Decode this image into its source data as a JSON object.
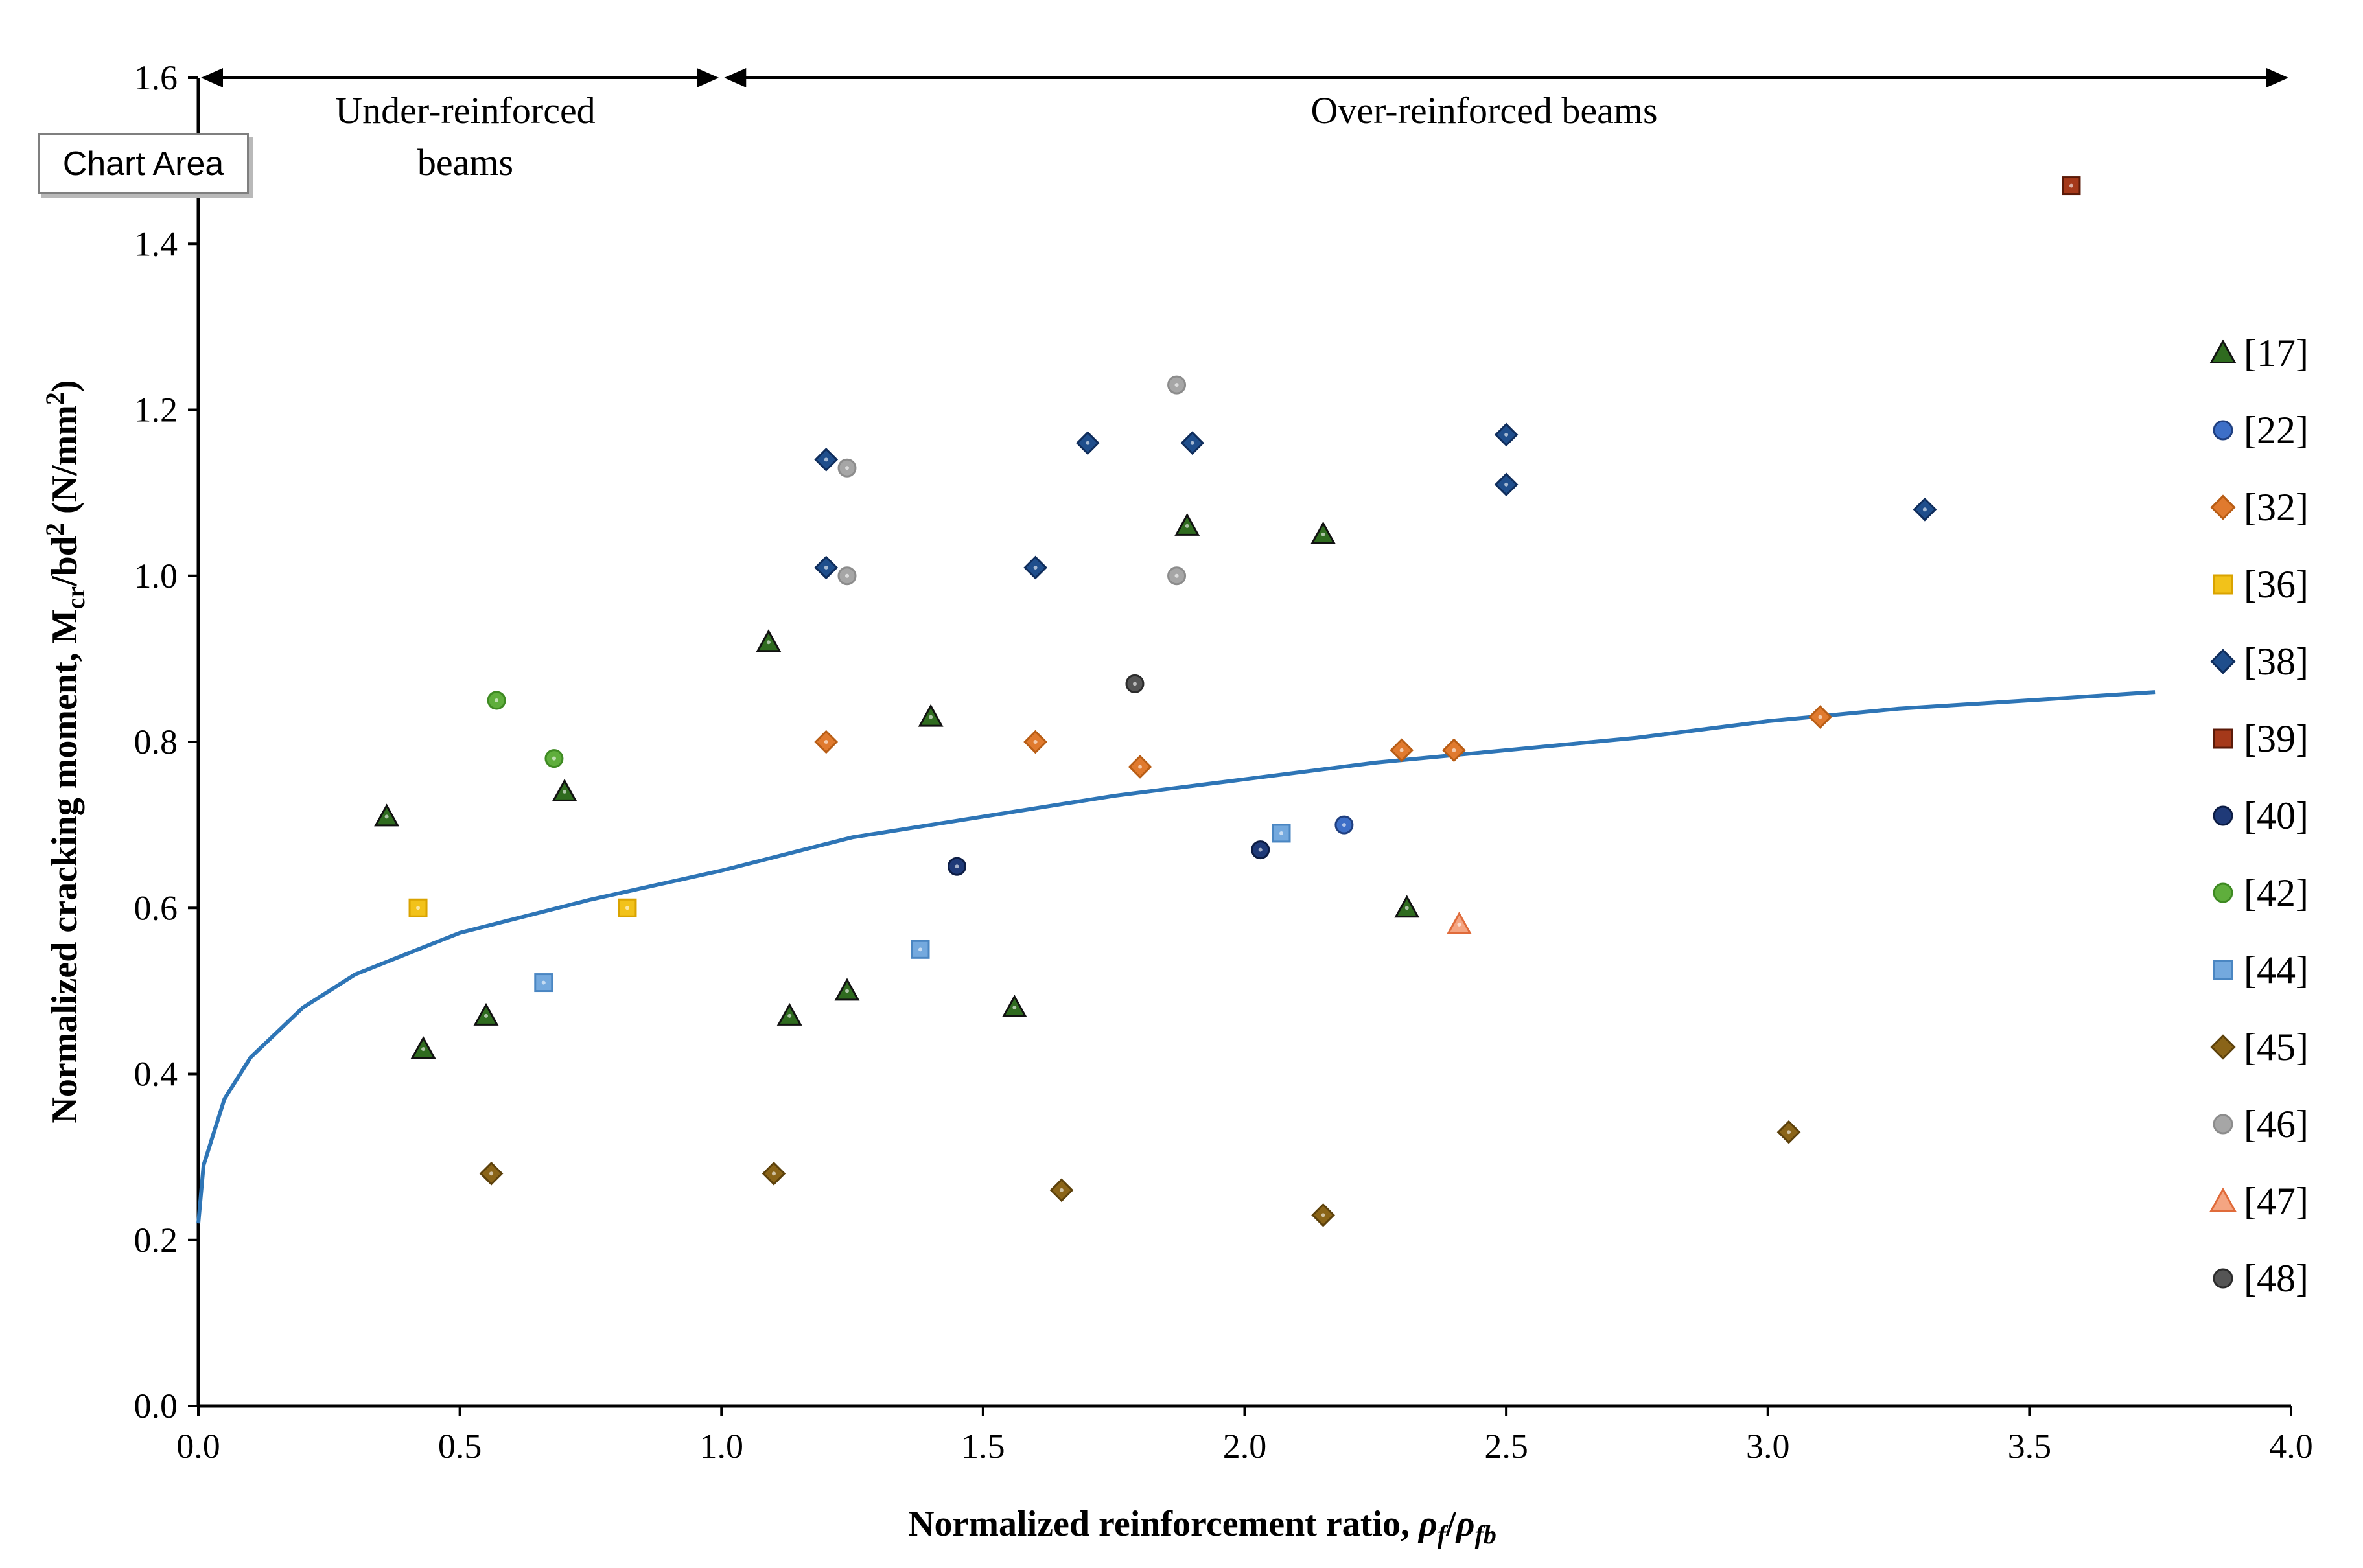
{
  "tag": {
    "label": "Chart Area"
  },
  "regions": {
    "under_line1": "Under-reinforced",
    "under_line2": "beams",
    "over": "Over-reinforced beams"
  },
  "chart_data": {
    "type": "scatter",
    "xlabel": "Normalized reinforcement ratio, ρf/ρfb",
    "ylabel": "Normalized cracking moment, Mcr/bd² (N/mm²)",
    "xlim": [
      0,
      4
    ],
    "ylim": [
      0,
      1.6
    ],
    "xticks": [
      "0.0",
      "0.5",
      "1.0",
      "1.5",
      "2.0",
      "2.5",
      "3.0",
      "3.5",
      "4.0"
    ],
    "yticks": [
      "0.0",
      "0.2",
      "0.4",
      "0.6",
      "0.8",
      "1.0",
      "1.2",
      "1.4",
      "1.6"
    ],
    "grid": false,
    "legend_position": "right",
    "series": [
      {
        "name": "[17]",
        "marker": "triangle",
        "color": "#2f6b1f",
        "edge": "#111111",
        "points": [
          [
            0.36,
            0.71
          ],
          [
            0.43,
            0.43
          ],
          [
            0.55,
            0.47
          ],
          [
            0.7,
            0.74
          ],
          [
            1.09,
            0.92
          ],
          [
            1.13,
            0.47
          ],
          [
            1.24,
            0.5
          ],
          [
            1.4,
            0.83
          ],
          [
            1.56,
            0.48
          ],
          [
            1.89,
            1.06
          ],
          [
            2.15,
            1.05
          ],
          [
            2.31,
            0.6
          ]
        ]
      },
      {
        "name": "[22]",
        "marker": "circle",
        "color": "#3d6fc7",
        "edge": "#1f3f80",
        "points": [
          [
            2.19,
            0.7
          ]
        ]
      },
      {
        "name": "[32]",
        "marker": "diamond",
        "color": "#e07a2e",
        "edge": "#b85d15",
        "points": [
          [
            1.2,
            0.8
          ],
          [
            1.6,
            0.8
          ],
          [
            1.8,
            0.77
          ],
          [
            2.3,
            0.79
          ],
          [
            2.4,
            0.79
          ],
          [
            3.1,
            0.83
          ]
        ]
      },
      {
        "name": "[36]",
        "marker": "square",
        "color": "#f2c21a",
        "edge": "#d9a300",
        "points": [
          [
            0.42,
            0.6
          ],
          [
            0.82,
            0.6
          ]
        ]
      },
      {
        "name": "[38]",
        "marker": "diamond",
        "color": "#1f4e8c",
        "edge": "#0f2d5c",
        "points": [
          [
            1.2,
            1.14
          ],
          [
            1.2,
            1.01
          ],
          [
            1.6,
            1.01
          ],
          [
            1.7,
            1.16
          ],
          [
            1.9,
            1.16
          ],
          [
            2.5,
            1.17
          ],
          [
            2.5,
            1.11
          ],
          [
            3.3,
            1.08
          ]
        ]
      },
      {
        "name": "[39]",
        "marker": "square",
        "color": "#a5391a",
        "edge": "#5a1a08",
        "points": [
          [
            3.58,
            1.47
          ]
        ]
      },
      {
        "name": "[40]",
        "marker": "circle",
        "color": "#1f3a78",
        "edge": "#0c1c44",
        "points": [
          [
            1.45,
            0.65
          ],
          [
            2.03,
            0.67
          ]
        ]
      },
      {
        "name": "[42]",
        "marker": "circle",
        "color": "#5fae3c",
        "edge": "#3e8a22",
        "points": [
          [
            0.57,
            0.85
          ],
          [
            0.68,
            0.78
          ]
        ]
      },
      {
        "name": "[44]",
        "marker": "square",
        "color": "#74a9de",
        "edge": "#4a86c2",
        "points": [
          [
            0.66,
            0.51
          ],
          [
            1.38,
            0.55
          ],
          [
            2.07,
            0.69
          ]
        ]
      },
      {
        "name": "[45]",
        "marker": "diamond",
        "color": "#8a6418",
        "edge": "#5c410b",
        "points": [
          [
            0.56,
            0.28
          ],
          [
            1.1,
            0.28
          ],
          [
            1.65,
            0.26
          ],
          [
            2.15,
            0.23
          ],
          [
            3.04,
            0.33
          ]
        ]
      },
      {
        "name": "[46]",
        "marker": "circle",
        "color": "#a6a6a6",
        "edge": "#8c8c8c",
        "points": [
          [
            1.24,
            1.13
          ],
          [
            1.24,
            1.0
          ],
          [
            1.87,
            1.23
          ],
          [
            1.87,
            1.0
          ]
        ]
      },
      {
        "name": "[47]",
        "marker": "triangle",
        "color": "#f4a582",
        "edge": "#e06b3a",
        "points": [
          [
            2.41,
            0.58
          ]
        ]
      },
      {
        "name": "[48]",
        "marker": "circle",
        "color": "#555555",
        "edge": "#2b2b2b",
        "points": [
          [
            1.79,
            0.87
          ]
        ]
      }
    ],
    "trendline": {
      "color": "#2e75b6",
      "points": [
        [
          0.0,
          0.22
        ],
        [
          0.01,
          0.29
        ],
        [
          0.03,
          0.33
        ],
        [
          0.05,
          0.37
        ],
        [
          0.1,
          0.42
        ],
        [
          0.2,
          0.48
        ],
        [
          0.3,
          0.52
        ],
        [
          0.4,
          0.545
        ],
        [
          0.5,
          0.57
        ],
        [
          0.75,
          0.61
        ],
        [
          1.0,
          0.645
        ],
        [
          1.25,
          0.685
        ],
        [
          1.5,
          0.71
        ],
        [
          1.75,
          0.735
        ],
        [
          2.0,
          0.755
        ],
        [
          2.25,
          0.775
        ],
        [
          2.5,
          0.79
        ],
        [
          2.75,
          0.805
        ],
        [
          3.0,
          0.825
        ],
        [
          3.25,
          0.84
        ],
        [
          3.5,
          0.85
        ],
        [
          3.74,
          0.86
        ]
      ]
    }
  }
}
